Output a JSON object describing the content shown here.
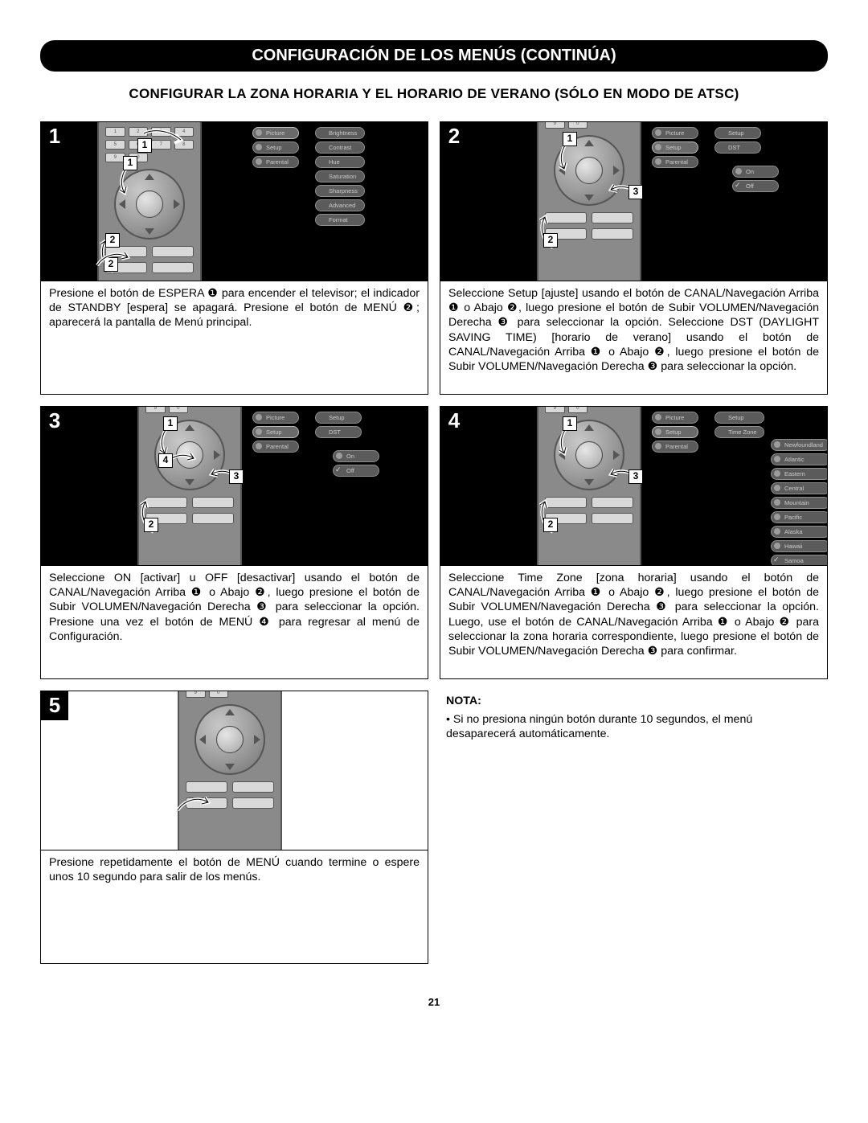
{
  "page_title": "CONFIGURACIÓN DE LOS MENÚS (CONTINÚA)",
  "subtitle": "CONFIGURAR LA ZONA HORARIA Y EL HORARIO DE VERANO (SÓLO EN MODO DE ATSC)",
  "page_number": "21",
  "colors": {
    "page_bg": "#ffffff",
    "title_bg": "#000000",
    "title_fg": "#ffffff",
    "remote_body": "#8a8a8a",
    "osd_bg": "#000000",
    "pill_bg": "#5b5b5b",
    "pill_border": "#8e8e8e"
  },
  "steps": [
    {
      "num": "1",
      "text": "Presione el botón de ESPERA ❶ para encender el televisor; el indicador de STANDBY [espera] se apagará. Presione el botón de MENÚ ❷; aparecerá la pantalla de Menú principal.",
      "remote_lowered": false,
      "arrows": [
        "1",
        "2"
      ],
      "osd": {
        "col1": [
          "Picture",
          "Setup",
          "Parental"
        ],
        "col1_sel": 0,
        "col2": [
          "Brightness",
          "Contrast",
          "Hue",
          "Saturation",
          "Sharpness",
          "Advanced",
          "Format"
        ],
        "col2_checks": []
      }
    },
    {
      "num": "2",
      "text": "Seleccione Setup [ajuste] usando el botón de CANAL/Navegación Arriba ❶ o Abajo ❷, luego presione el botón de Subir VOLUMEN/Navegación Derecha ❸ para seleccionar la opción. Seleccione DST (DAYLIGHT SAVING TIME) [horario de verano] usando el botón de CANAL/Navegación Arriba ❶ o Abajo ❷, luego presione el botón de Subir VOLUMEN/Navegación Derecha ❸ para seleccionar la opción.",
      "remote_lowered": true,
      "arrows": [
        "1",
        "2",
        "3"
      ],
      "osd": {
        "col1": [
          "Picture",
          "Setup",
          "Parental"
        ],
        "col1_sel": 1,
        "col2": [
          "Setup",
          "DST"
        ],
        "col3": [
          "On",
          "Off"
        ],
        "col3_checks": [
          1
        ]
      }
    },
    {
      "num": "3",
      "text": "Seleccione ON [activar] u OFF [desactivar] usando el botón de CANAL/Navegación Arriba ❶ o Abajo ❷, luego presione el botón de Subir VOLUMEN/Navegación Derecha ❸ para seleccionar la opción. Presione una vez el botón de MENÚ ❹ para regresar al menú de Configuración.",
      "remote_lowered": true,
      "arrows": [
        "1",
        "2",
        "3",
        "4"
      ],
      "osd": {
        "col1": [
          "Picture",
          "Setup",
          "Parental"
        ],
        "col1_sel": 1,
        "col2": [
          "Setup",
          "DST"
        ],
        "col3": [
          "On",
          "Off"
        ],
        "col3_checks": [
          1
        ]
      }
    },
    {
      "num": "4",
      "text": "Seleccione Time Zone [zona horaria] usando el botón de CANAL/Navegación Arriba ❶ o Abajo ❷, luego presione el botón de Subir VOLUMEN/Navegación Derecha ❸ para seleccionar la opción. Luego, use el botón de CANAL/Navegación Arriba ❶ o Abajo ❷ para seleccionar la zona horaria correspondiente, luego presione el botón de Subir VOLUMEN/Navegación Derecha ❸ para confirmar.",
      "remote_lowered": true,
      "arrows": [
        "1",
        "2",
        "3"
      ],
      "osd": {
        "col1": [
          "Picture",
          "Setup",
          "Parental"
        ],
        "col1_sel": 1,
        "col2": [
          "Setup",
          "Time Zone"
        ],
        "col3": [
          "Newfoundland",
          "Atlantic",
          "Eastern",
          "Central",
          "Mountain",
          "Pacific",
          "Alaska",
          "Hawaii",
          "Samoa"
        ],
        "col3_checks": [
          8
        ]
      }
    },
    {
      "num": "5",
      "text": "Presione repetidamente el botón de MENÚ cuando termine o espere unos 10 segundo para salir de los menús.",
      "remote_lowered": true,
      "remote_centered": true,
      "arrows": [],
      "osd": null
    }
  ],
  "note": {
    "label": "NOTA:",
    "items": [
      "Si no presiona ningún botón durante 10 segundos, el menú desaparecerá automáticamente."
    ]
  }
}
